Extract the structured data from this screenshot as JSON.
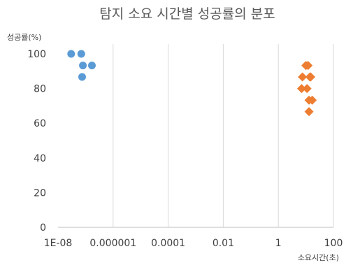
{
  "chart_data": {
    "type": "scatter",
    "title": "탐지 소요 시간별 성공률의 분포",
    "xlabel": "소요시간(초)",
    "ylabel": "성공률(%)",
    "x_scale": "log",
    "xlim": [
      1e-08,
      100
    ],
    "ylim": [
      0,
      100
    ],
    "x_tick_labels": [
      "1E-08",
      "0.000001",
      "0.0001",
      "0.01",
      "1",
      "100"
    ],
    "y_tick_labels": [
      "0",
      "20",
      "40",
      "60",
      "80",
      "100"
    ],
    "grid": {
      "vertical": true,
      "horizontal": false
    },
    "legend": "none",
    "series": [
      {
        "color": "#5b9bd5",
        "marker": "circle",
        "points": [
          {
            "x": 3e-08,
            "y": 100.0
          },
          {
            "x": 7e-08,
            "y": 100.0
          },
          {
            "x": 8e-08,
            "y": 93.3
          },
          {
            "x": 1.7e-07,
            "y": 93.3
          },
          {
            "x": 7.5e-08,
            "y": 86.7
          }
        ]
      },
      {
        "color": "#ed7d31",
        "marker": "diamond",
        "points": [
          {
            "x": 10.0,
            "y": 93.3
          },
          {
            "x": 12.0,
            "y": 93.3
          },
          {
            "x": 7.5,
            "y": 86.7
          },
          {
            "x": 14.0,
            "y": 86.7
          },
          {
            "x": 15.0,
            "y": 86.7
          },
          {
            "x": 7.0,
            "y": 80.0
          },
          {
            "x": 11.0,
            "y": 80.0
          },
          {
            "x": 13.0,
            "y": 73.3
          },
          {
            "x": 17.0,
            "y": 73.3
          },
          {
            "x": 13.0,
            "y": 66.7
          }
        ]
      }
    ]
  }
}
